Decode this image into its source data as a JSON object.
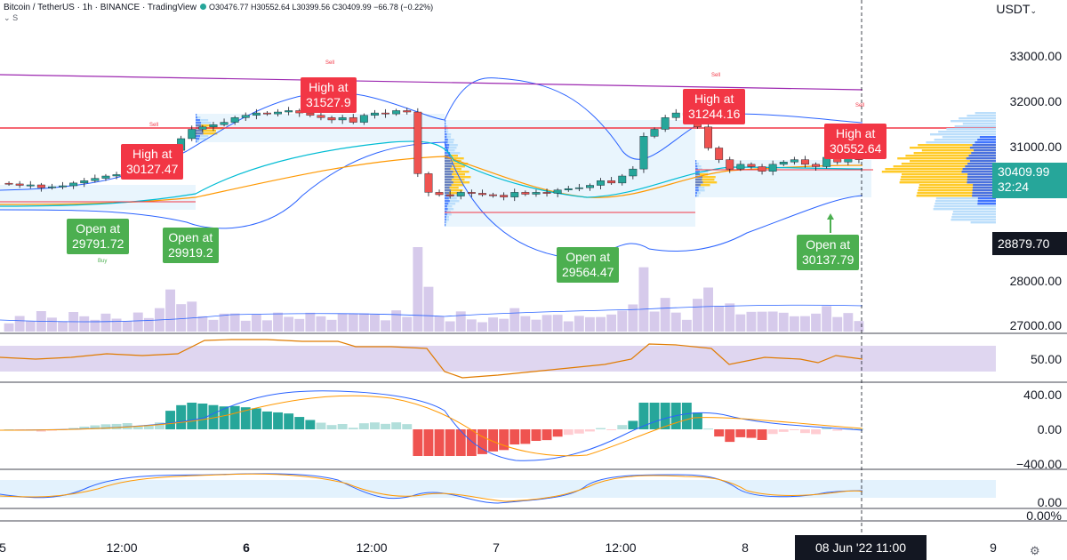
{
  "header": {
    "title": "Bitcoin / TetherUS · 1h · BINANCE · TradingView",
    "ohlc": "O30476.77 H30552.64 L30399.56 C30409.99 −66.78 (−0.22%)",
    "line2": "S",
    "currency": "USDT"
  },
  "price_axis": {
    "ticks": [
      "33000.00",
      "32000.00",
      "31000.00",
      "28000.00",
      "27000.00"
    ],
    "last_price": "30409.99",
    "countdown": "32:24",
    "crosshair_price": "28879.70"
  },
  "rsi_axis": {
    "ticks": [
      "50.00"
    ]
  },
  "macd_axis": {
    "ticks": [
      "400.00",
      "0.00",
      "−400.00"
    ]
  },
  "stoch_axis": {
    "ticks": [
      "0.00",
      "0.00%"
    ]
  },
  "time_axis": {
    "ticks": [
      "5",
      "12:00",
      "6",
      "12:00",
      "7",
      "12:00",
      "8",
      "9"
    ],
    "crosshair": "08 Jun '22   11:00"
  },
  "annotations": {
    "high1": {
      "t1": "High at",
      "t2": "30127.47"
    },
    "high2": {
      "t1": "High at",
      "t2": "31527.9"
    },
    "high3": {
      "t1": "High at",
      "t2": "31244.16"
    },
    "high4": {
      "t1": "High at",
      "t2": "30552.64"
    },
    "open1": {
      "t1": "Open at",
      "t2": "29791.72"
    },
    "open2": {
      "t1": "Open at",
      "t2": "29919.2"
    },
    "open3": {
      "t1": "Open at",
      "t2": "29564.47"
    },
    "open4": {
      "t1": "Open at",
      "t2": "30137.79"
    },
    "sell": "Sell",
    "buy": "Buy"
  },
  "colors": {
    "up": "#26a69a",
    "down": "#ef5350",
    "bb": "#2962ff",
    "ema_fast": "#00bcd4",
    "ema_slow": "#ff9800",
    "rsi": "#e07b00",
    "resistance": "#f23645",
    "trend": "#9c27b0"
  },
  "chart_data": {
    "type": "candlestick",
    "symbol": "BTC/USDT",
    "interval": "1h",
    "exchange": "BINANCE",
    "ylim": [
      26700,
      33400
    ],
    "candles_approx_closes": [
      29880,
      29850,
      29860,
      29800,
      29820,
      29840,
      29900,
      29950,
      30000,
      30050,
      30080,
      30127,
      30050,
      30100,
      30200,
      30600,
      30850,
      31050,
      31100,
      31150,
      31200,
      31300,
      31350,
      31400,
      31380,
      31420,
      31450,
      31400,
      31350,
      31300,
      31250,
      31300,
      31200,
      31350,
      31400,
      31380,
      31450,
      31420,
      30100,
      29700,
      29650,
      29620,
      29700,
      29680,
      29650,
      29640,
      29600,
      29700,
      29660,
      29700,
      29680,
      29750,
      29780,
      29800,
      29850,
      29950,
      29900,
      30050,
      30200,
      30900,
      31050,
      31300,
      31400,
      31350,
      31100,
      30650,
      30400,
      30200,
      30300,
      30250,
      30150,
      30300,
      30350,
      30400,
      30300,
      30250,
      30450,
      30350,
      30420,
      30410
    ],
    "resistance_level": 31400,
    "rsi_level": 50,
    "macd_ylim": [
      -400,
      400
    ]
  }
}
